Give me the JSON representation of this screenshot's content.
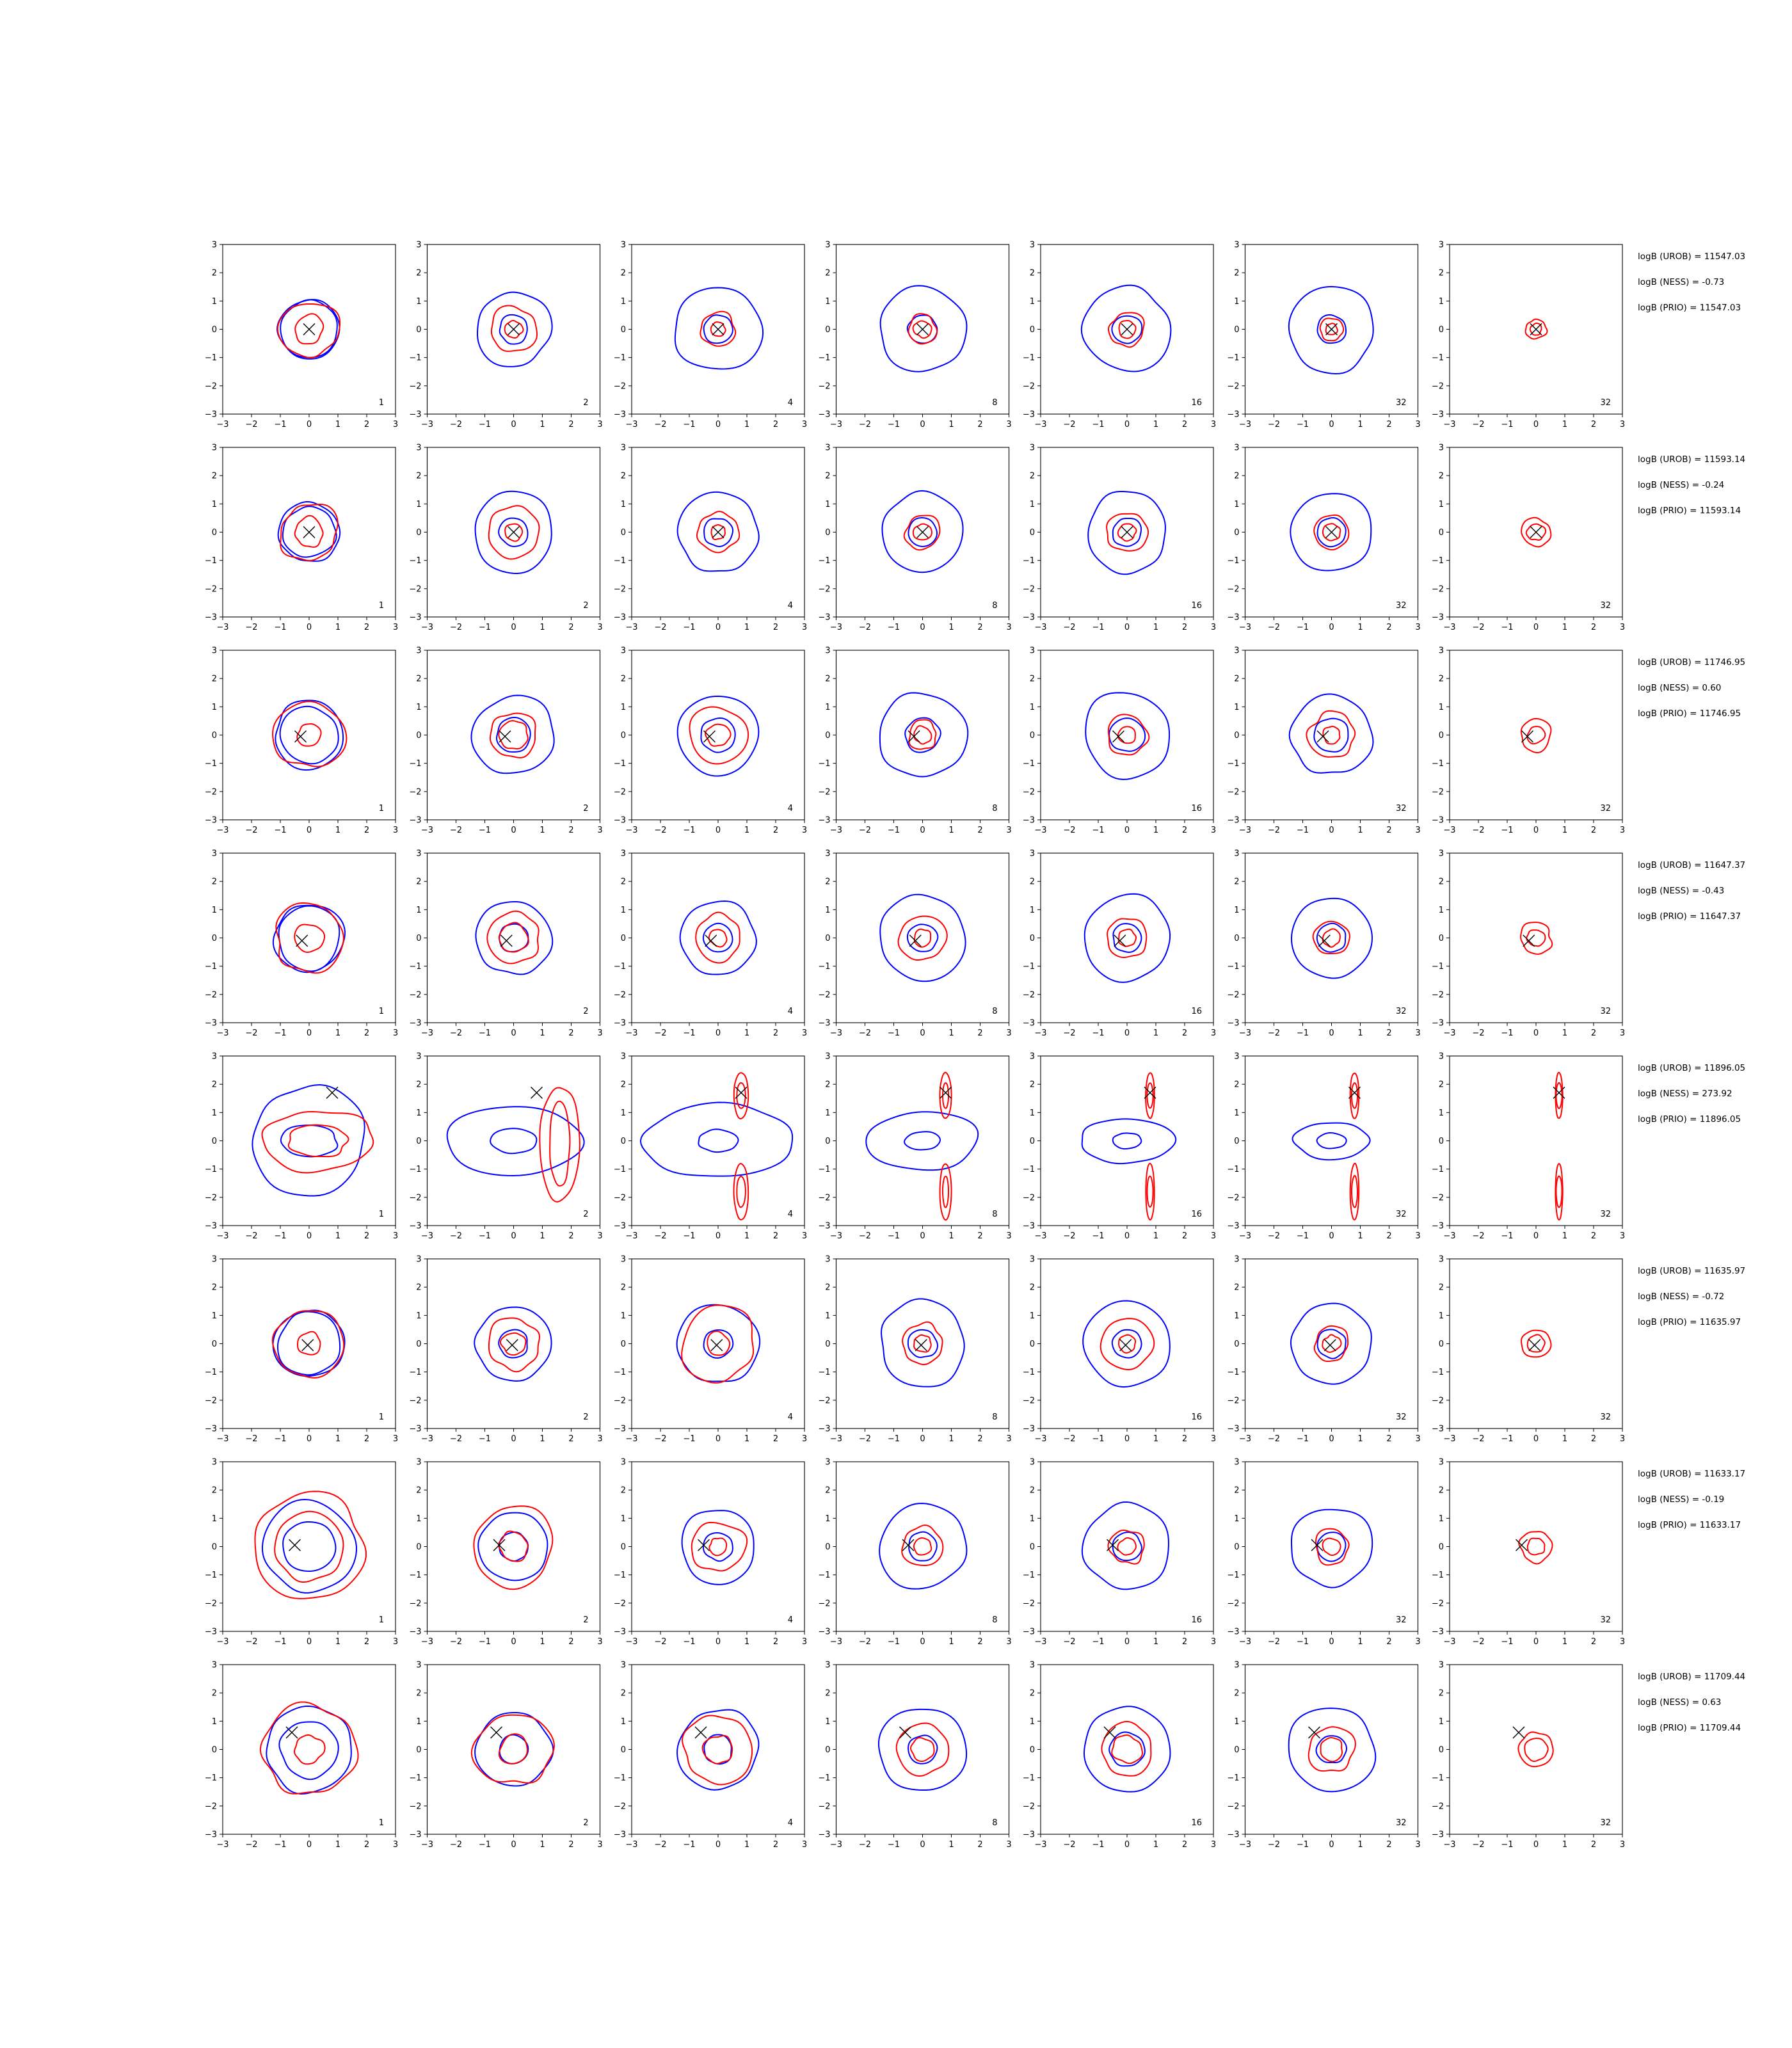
{
  "chart_data": {
    "type": "contour-grid",
    "xlim": [
      -3,
      3
    ],
    "ylim": [
      -3,
      3
    ],
    "ticks": [
      "−3",
      "−2",
      "−1",
      "0",
      "1",
      "2",
      "3"
    ],
    "tick_values": [
      -3,
      -2,
      -1,
      0,
      1,
      2,
      3
    ],
    "grid": false,
    "colors": {
      "blue": "#0000ff",
      "red": "#ff0000",
      "marker": "#000000"
    },
    "columns": [
      {
        "label": "1",
        "blue": true
      },
      {
        "label": "2",
        "blue": true
      },
      {
        "label": "4",
        "blue": true
      },
      {
        "label": "8",
        "blue": true
      },
      {
        "label": "16",
        "blue": true
      },
      {
        "label": "32",
        "blue": true
      },
      {
        "label": "32",
        "blue": false
      }
    ],
    "rows": [
      {
        "marker": [
          0,
          0
        ],
        "stats": [
          "logB (UROB) = 11547.03",
          "logB (NESS) = -0.73",
          "logB (PRIO) = 11547.03"
        ],
        "blue": [
          [
            1.0,
            0.5,
            0.5,
            0.5,
            0.5,
            0.5,
            0
          ],
          [
            1.05,
            1.3,
            1.5,
            1.5,
            1.5,
            1.5,
            0
          ]
        ],
        "red": [
          [
            0.5,
            0.3,
            0.25,
            0.3,
            0.3,
            0.2,
            0.2
          ],
          [
            1.0,
            0.8,
            0.6,
            0.5,
            0.6,
            0.4,
            0.35
          ]
        ]
      },
      {
        "marker": [
          0,
          0
        ],
        "stats": [
          "logB (UROB) = 11593.14",
          "logB (NESS) = -0.24",
          "logB (PRIO) = 11593.14"
        ],
        "blue": [
          [
            0.9,
            0.5,
            0.5,
            0.5,
            0.5,
            0.5,
            0
          ],
          [
            1.05,
            1.4,
            1.4,
            1.4,
            1.4,
            1.4,
            0
          ]
        ],
        "red": [
          [
            0.5,
            0.3,
            0.25,
            0.3,
            0.3,
            0.3,
            0.3
          ],
          [
            1.0,
            0.9,
            0.7,
            0.6,
            0.7,
            0.6,
            0.5
          ]
        ]
      },
      {
        "marker": [
          -0.3,
          -0.05
        ],
        "stats": [
          "logB (UROB) = 11746.95",
          "logB (NESS) = 0.60",
          "logB (PRIO) = 11746.95"
        ],
        "blue": [
          [
            1.0,
            0.6,
            0.6,
            0.6,
            0.6,
            0.6,
            0
          ],
          [
            1.2,
            1.4,
            1.4,
            1.5,
            1.5,
            1.4,
            0
          ]
        ],
        "red": [
          [
            0.4,
            0.5,
            0.4,
            0.3,
            0.3,
            0.3,
            0.3
          ],
          [
            1.2,
            0.8,
            1.0,
            0.5,
            0.7,
            0.8,
            0.55
          ]
        ]
      },
      {
        "marker": [
          -0.25,
          -0.1
        ],
        "stats": [
          "logB (UROB) = 11647.37",
          "logB (NESS) = -0.43",
          "logB (PRIO) = 11647.37"
        ],
        "blue": [
          [
            1.1,
            0.5,
            0.5,
            0.5,
            0.5,
            0.5,
            0
          ],
          [
            1.2,
            1.3,
            1.3,
            1.5,
            1.5,
            1.4,
            0
          ]
        ],
        "red": [
          [
            0.5,
            0.5,
            0.3,
            0.3,
            0.3,
            0.3,
            0.3
          ],
          [
            1.2,
            0.9,
            0.8,
            0.8,
            0.7,
            0.6,
            0.55
          ]
        ]
      },
      {
        "marker": [
          0.8,
          1.7
        ],
        "stats": [
          "logB (UROB) = 11896.05",
          "logB (NESS) = 273.92",
          "logB (PRIO) = 11896.05"
        ],
        "blue": [
          [
            1.0,
            0.8,
            0.7,
            0.6,
            0.5,
            0.5,
            0
          ],
          [
            2.0,
            2.4,
            2.6,
            2.0,
            1.6,
            1.3,
            0
          ]
        ],
        "red": [
          [
            0.8,
            0.8,
            0.3,
            0.2,
            0.2,
            0.2,
            0.2
          ],
          [
            1.5,
            1.2,
            0.5,
            0.4,
            0.3,
            0.3,
            0.25
          ]
        ]
      },
      {
        "marker": [
          -0.05,
          -0.05
        ],
        "stats": [
          "logB (UROB) = 11635.97",
          "logB (NESS) = -0.72",
          "logB (PRIO) = 11635.97"
        ],
        "blue": [
          [
            1.1,
            0.5,
            0.5,
            0.5,
            0.5,
            0.5,
            0
          ],
          [
            1.2,
            1.3,
            1.4,
            1.5,
            1.5,
            1.4,
            0
          ]
        ],
        "red": [
          [
            0.4,
            0.4,
            0.4,
            0.3,
            0.3,
            0.3,
            0.3
          ],
          [
            1.2,
            0.9,
            1.3,
            0.7,
            0.9,
            0.6,
            0.5
          ]
        ]
      },
      {
        "marker": [
          -0.5,
          0.05
        ],
        "stats": [
          "logB (UROB) = 11633.17",
          "logB (NESS) = -0.19",
          "logB (PRIO) = 11633.17"
        ],
        "blue": [
          [
            0.9,
            0.5,
            0.5,
            0.5,
            0.5,
            0.5,
            0
          ],
          [
            1.6,
            1.2,
            1.3,
            1.5,
            1.5,
            1.4,
            0
          ]
        ],
        "red": [
          [
            1.2,
            0.5,
            0.3,
            0.3,
            0.3,
            0.3,
            0.3
          ],
          [
            1.9,
            1.4,
            0.9,
            0.7,
            0.6,
            0.6,
            0.55
          ]
        ]
      },
      {
        "marker": [
          -0.6,
          0.6
        ],
        "stats": [
          "logB (UROB) = 11709.44",
          "logB (NESS) = 0.63",
          "logB (PRIO) = 11709.44"
        ],
        "blue": [
          [
            1.0,
            0.5,
            0.5,
            0.5,
            0.6,
            0.5,
            0
          ],
          [
            1.5,
            1.3,
            1.4,
            1.5,
            1.5,
            1.5,
            0
          ]
        ],
        "red": [
          [
            0.5,
            0.5,
            0.5,
            0.4,
            0.5,
            0.4,
            0.4
          ],
          [
            1.6,
            1.3,
            1.2,
            0.9,
            0.9,
            0.8,
            0.6
          ]
        ]
      }
    ]
  }
}
